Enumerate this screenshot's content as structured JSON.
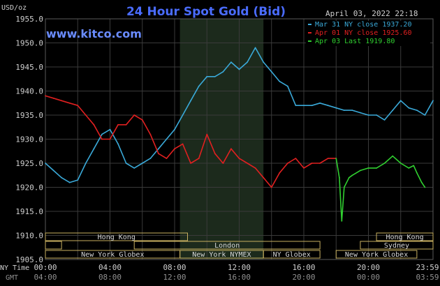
{
  "chart_data": {
    "type": "line",
    "title": "24 Hour Spot Gold (Bid)",
    "watermark": "www.kitco.com",
    "timestamp": "April 03, 2022 22:18",
    "y_unit_label": "USD/oz",
    "ylim": [
      1905,
      1955
    ],
    "y_ticks": [
      "1955.0",
      "1950.0",
      "1945.0",
      "1940.0",
      "1935.0",
      "1930.0",
      "1925.0",
      "1920.0",
      "1915.0",
      "1910.0",
      "1905.0"
    ],
    "y_tick_values": [
      1955,
      1950,
      1945,
      1940,
      1935,
      1930,
      1925,
      1920,
      1915,
      1910,
      1905
    ],
    "xlim": [
      0,
      24
    ],
    "x_ticks_ny": [
      "00:00",
      "04:00",
      "08:00",
      "12:00",
      "16:00",
      "20:00",
      "23:59"
    ],
    "x_ticks_gmt": [
      "04:00",
      "08:00",
      "12:00",
      "16:00",
      "20:00",
      "00:00",
      "03:59"
    ],
    "x_tick_hours": [
      0,
      4,
      8,
      12,
      16,
      20,
      23.98
    ],
    "x_label_ny": "NY Time",
    "x_label_gmt": "GMT",
    "grid": true,
    "legend_placement": "top-right",
    "colors": {
      "background": "#000000",
      "grid": "#3a3a3a",
      "highlight": "#1c2a1c",
      "title": "#4a6cff",
      "watermark": "#6a8cff",
      "text": "#d0d0d0",
      "session_line": "#c8b060"
    },
    "series": [
      {
        "name": "Mar 31 NY close 1937.20",
        "color": "#3aa9d8",
        "x": [
          0,
          0.5,
          1,
          1.5,
          2,
          2.5,
          3,
          3.5,
          4,
          4.5,
          5,
          5.5,
          6,
          6.5,
          7,
          7.5,
          8,
          8.5,
          9,
          9.5,
          10,
          10.5,
          11,
          11.5,
          12,
          12.5,
          13,
          13.5,
          14,
          14.5,
          15,
          15.5,
          16,
          16.5,
          17,
          17.5,
          18,
          18.5,
          19,
          19.5,
          20,
          20.5,
          21,
          21.5,
          22,
          22.5,
          23,
          23.5,
          24
        ],
        "values": [
          1925,
          1923.5,
          1922,
          1921,
          1921.5,
          1925,
          1928,
          1931,
          1932,
          1929,
          1925,
          1924,
          1925,
          1926,
          1928,
          1930,
          1932,
          1935,
          1938,
          1941,
          1943,
          1943,
          1944,
          1946,
          1944.5,
          1946,
          1949,
          1946,
          1944,
          1942,
          1941,
          1937,
          1937,
          1937,
          1937.5,
          1937,
          1936.5,
          1936,
          1936,
          1935.5,
          1935,
          1935,
          1934,
          1936,
          1938,
          1936.5,
          1936,
          1935,
          1938
        ]
      },
      {
        "name": "Apr 01 NY close 1925.60",
        "color": "#e02020",
        "x": [
          0,
          0.5,
          1,
          1.5,
          2,
          2.5,
          3,
          3.5,
          4,
          4.5,
          5,
          5.5,
          6,
          6.5,
          7,
          7.5,
          8,
          8.5,
          9,
          9.5,
          10,
          10.5,
          11,
          11.5,
          12,
          12.5,
          13,
          13.5,
          14,
          14.5,
          15,
          15.5,
          16,
          16.5,
          17,
          17.5,
          18
        ],
        "values": [
          1939,
          1938.5,
          1938,
          1937.5,
          1937,
          1935,
          1933,
          1930,
          1930,
          1933,
          1933,
          1935,
          1934,
          1931,
          1927,
          1926,
          1928,
          1929,
          1925,
          1926,
          1931,
          1927,
          1925,
          1928,
          1926,
          1925,
          1924,
          1922,
          1920,
          1923,
          1925,
          1926,
          1924,
          1925,
          1925,
          1926,
          1926
        ]
      },
      {
        "name": "Apr 03 Last 1919.80",
        "color": "#30d030",
        "x": [
          18,
          18.2,
          18.35,
          18.5,
          18.8,
          19,
          19.5,
          20,
          20.5,
          21,
          21.5,
          22,
          22.5,
          22.8,
          23,
          23.3,
          23.5
        ],
        "values": [
          1926,
          1922,
          1913,
          1920,
          1922,
          1922.5,
          1923.5,
          1924,
          1924,
          1925,
          1926.5,
          1925,
          1924,
          1924.5,
          1923,
          1921,
          1920
        ]
      }
    ],
    "sessions": {
      "hong_kong_label": "Hong Kong",
      "london_label": "London",
      "new_york_globex_label": "New York Globex",
      "new_york_nymex_label": "New York NYMEX",
      "ny_globex_label": "NY Globex",
      "sydney_label": "Sydney"
    }
  }
}
